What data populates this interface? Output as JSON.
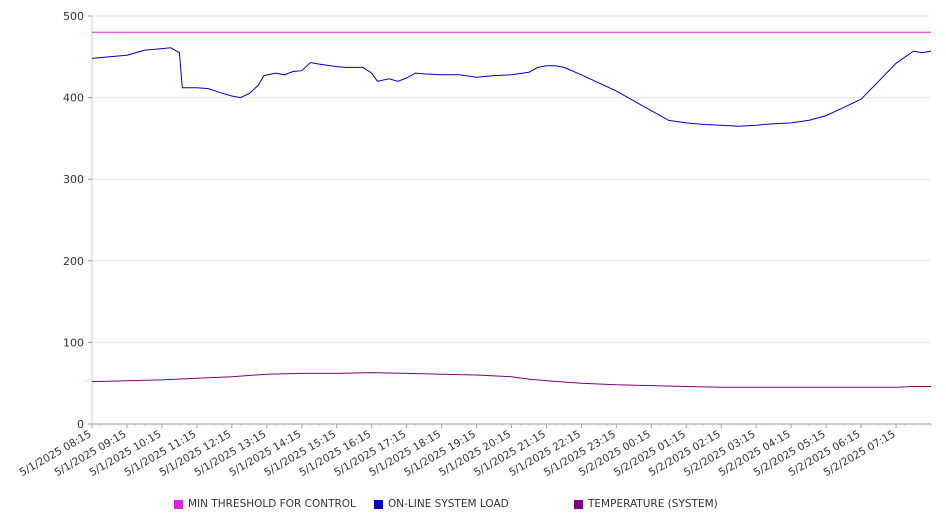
{
  "chart_data": {
    "type": "line",
    "ylim": [
      0,
      500
    ],
    "y_ticks": [
      0,
      100,
      200,
      300,
      400,
      500
    ],
    "grid": true,
    "legend_position": "bottom",
    "x_tick_labels": [
      "5/1/2025 08:15",
      "5/1/2025 09:15",
      "5/1/2025 10:15",
      "5/1/2025 11:15",
      "5/1/2025 12:15",
      "5/1/2025 13:15",
      "5/1/2025 14:15",
      "5/1/2025 15:15",
      "5/1/2025 16:15",
      "5/1/2025 17:15",
      "5/1/2025 18:15",
      "5/1/2025 19:15",
      "5/1/2025 20:15",
      "5/1/2025 21:15",
      "5/1/2025 22:15",
      "5/1/2025 23:15",
      "5/2/2025 00:15",
      "5/2/2025 01:15",
      "5/2/2025 02:15",
      "5/2/2025 03:15",
      "5/2/2025 04:15",
      "5/2/2025 05:15",
      "5/2/2025 06:15",
      "5/2/2025 07:15"
    ],
    "series": [
      {
        "name": "MIN THRESHOLD FOR CONTROL",
        "color": "#e020e0",
        "points": [
          [
            "5/1/2025 08:15",
            480
          ],
          [
            "5/2/2025 08:15",
            480
          ]
        ]
      },
      {
        "name": "ON-LINE SYSTEM LOAD",
        "color": "#0000cc",
        "points": [
          [
            "5/1/2025 08:15",
            448
          ],
          [
            "5/1/2025 08:45",
            450
          ],
          [
            "5/1/2025 09:15",
            452
          ],
          [
            "5/1/2025 09:45",
            458
          ],
          [
            "5/1/2025 10:15",
            460
          ],
          [
            "5/1/2025 10:30",
            461
          ],
          [
            "5/1/2025 10:45",
            455
          ],
          [
            "5/1/2025 10:50",
            412
          ],
          [
            "5/1/2025 11:15",
            412
          ],
          [
            "5/1/2025 11:35",
            411
          ],
          [
            "5/1/2025 11:55",
            406
          ],
          [
            "5/1/2025 12:15",
            402
          ],
          [
            "5/1/2025 12:30",
            400
          ],
          [
            "5/1/2025 12:45",
            405
          ],
          [
            "5/1/2025 13:00",
            415
          ],
          [
            "5/1/2025 13:10",
            427
          ],
          [
            "5/1/2025 13:30",
            430
          ],
          [
            "5/1/2025 13:45",
            428
          ],
          [
            "5/1/2025 14:00",
            432
          ],
          [
            "5/1/2025 14:15",
            433
          ],
          [
            "5/1/2025 14:30",
            443
          ],
          [
            "5/1/2025 14:45",
            441
          ],
          [
            "5/1/2025 15:15",
            438
          ],
          [
            "5/1/2025 15:30",
            437
          ],
          [
            "5/1/2025 16:00",
            437
          ],
          [
            "5/1/2025 16:15",
            430
          ],
          [
            "5/1/2025 16:25",
            420
          ],
          [
            "5/1/2025 16:45",
            423
          ],
          [
            "5/1/2025 17:00",
            420
          ],
          [
            "5/1/2025 17:15",
            424
          ],
          [
            "5/1/2025 17:30",
            430
          ],
          [
            "5/1/2025 17:45",
            429
          ],
          [
            "5/1/2025 18:15",
            428
          ],
          [
            "5/1/2025 18:45",
            428
          ],
          [
            "5/1/2025 19:15",
            425
          ],
          [
            "5/1/2025 19:45",
            427
          ],
          [
            "5/1/2025 20:15",
            428
          ],
          [
            "5/1/2025 20:45",
            431
          ],
          [
            "5/1/2025 21:00",
            437
          ],
          [
            "5/1/2025 21:15",
            439
          ],
          [
            "5/1/2025 21:30",
            439
          ],
          [
            "5/1/2025 21:45",
            437
          ],
          [
            "5/1/2025 22:15",
            428
          ],
          [
            "5/1/2025 22:45",
            418
          ],
          [
            "5/1/2025 23:15",
            408
          ],
          [
            "5/1/2025 23:45",
            396
          ],
          [
            "5/2/2025 00:15",
            384
          ],
          [
            "5/2/2025 00:45",
            372
          ],
          [
            "5/2/2025 01:15",
            369
          ],
          [
            "5/2/2025 01:45",
            367
          ],
          [
            "5/2/2025 02:15",
            366
          ],
          [
            "5/2/2025 02:45",
            365
          ],
          [
            "5/2/2025 03:15",
            366
          ],
          [
            "5/2/2025 03:45",
            368
          ],
          [
            "5/2/2025 04:15",
            369
          ],
          [
            "5/2/2025 04:45",
            372
          ],
          [
            "5/2/2025 05:15",
            378
          ],
          [
            "5/2/2025 05:45",
            388
          ],
          [
            "5/2/2025 06:15",
            398
          ],
          [
            "5/2/2025 06:45",
            420
          ],
          [
            "5/2/2025 07:15",
            442
          ],
          [
            "5/2/2025 07:45",
            457
          ],
          [
            "5/2/2025 08:00",
            455
          ],
          [
            "5/2/2025 08:15",
            457
          ]
        ]
      },
      {
        "name": "TEMPERATURE (SYSTEM)",
        "color": "#800080",
        "points": [
          [
            "5/1/2025 08:15",
            52
          ],
          [
            "5/1/2025 09:15",
            53
          ],
          [
            "5/1/2025 10:15",
            54
          ],
          [
            "5/1/2025 11:15",
            56
          ],
          [
            "5/1/2025 12:15",
            58
          ],
          [
            "5/1/2025 13:15",
            61
          ],
          [
            "5/1/2025 14:15",
            62
          ],
          [
            "5/1/2025 15:15",
            62
          ],
          [
            "5/1/2025 16:15",
            63
          ],
          [
            "5/1/2025 17:15",
            62
          ],
          [
            "5/1/2025 18:15",
            61
          ],
          [
            "5/1/2025 19:15",
            60
          ],
          [
            "5/1/2025 20:15",
            58
          ],
          [
            "5/1/2025 20:45",
            55
          ],
          [
            "5/1/2025 21:15",
            53
          ],
          [
            "5/1/2025 22:15",
            50
          ],
          [
            "5/1/2025 23:15",
            48
          ],
          [
            "5/2/2025 00:15",
            47
          ],
          [
            "5/2/2025 01:15",
            46
          ],
          [
            "5/2/2025 02:15",
            45
          ],
          [
            "5/2/2025 03:15",
            45
          ],
          [
            "5/2/2025 04:15",
            45
          ],
          [
            "5/2/2025 05:15",
            45
          ],
          [
            "5/2/2025 06:15",
            45
          ],
          [
            "5/2/2025 07:15",
            45
          ],
          [
            "5/2/2025 07:45",
            46
          ],
          [
            "5/2/2025 08:15",
            46
          ]
        ]
      }
    ]
  }
}
